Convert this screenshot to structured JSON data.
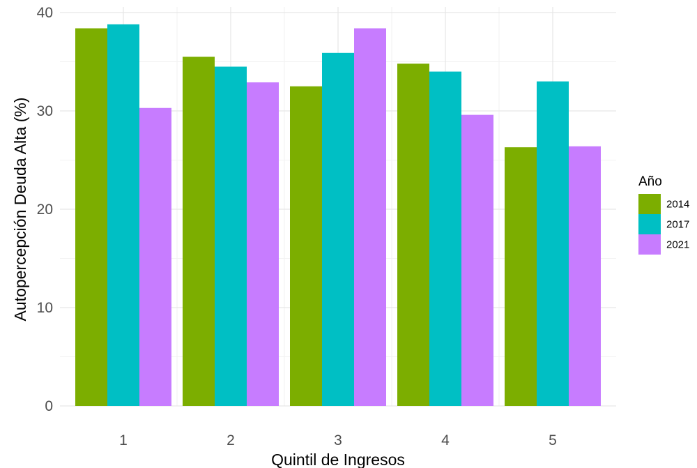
{
  "chart_data": {
    "type": "bar",
    "xlabel": "Quintil de Ingresos",
    "ylabel": "Autopercepción Deuda Alta (%)",
    "categories": [
      "1",
      "2",
      "3",
      "4",
      "5"
    ],
    "ylim": [
      0,
      40
    ],
    "yticks": [
      "0",
      "10",
      "20",
      "30",
      "40"
    ],
    "grid": true,
    "legend": {
      "title": "Año",
      "placement": "right"
    },
    "series": [
      {
        "name": "2014",
        "color": "#7CAE00",
        "values": [
          38.4,
          35.5,
          32.5,
          34.8,
          26.3
        ]
      },
      {
        "name": "2017",
        "color": "#00BFC4",
        "values": [
          38.8,
          34.5,
          35.9,
          34.0,
          33.0
        ]
      },
      {
        "name": "2021",
        "color": "#C77CFF",
        "values": [
          30.3,
          32.9,
          38.4,
          29.6,
          26.4
        ]
      }
    ]
  }
}
